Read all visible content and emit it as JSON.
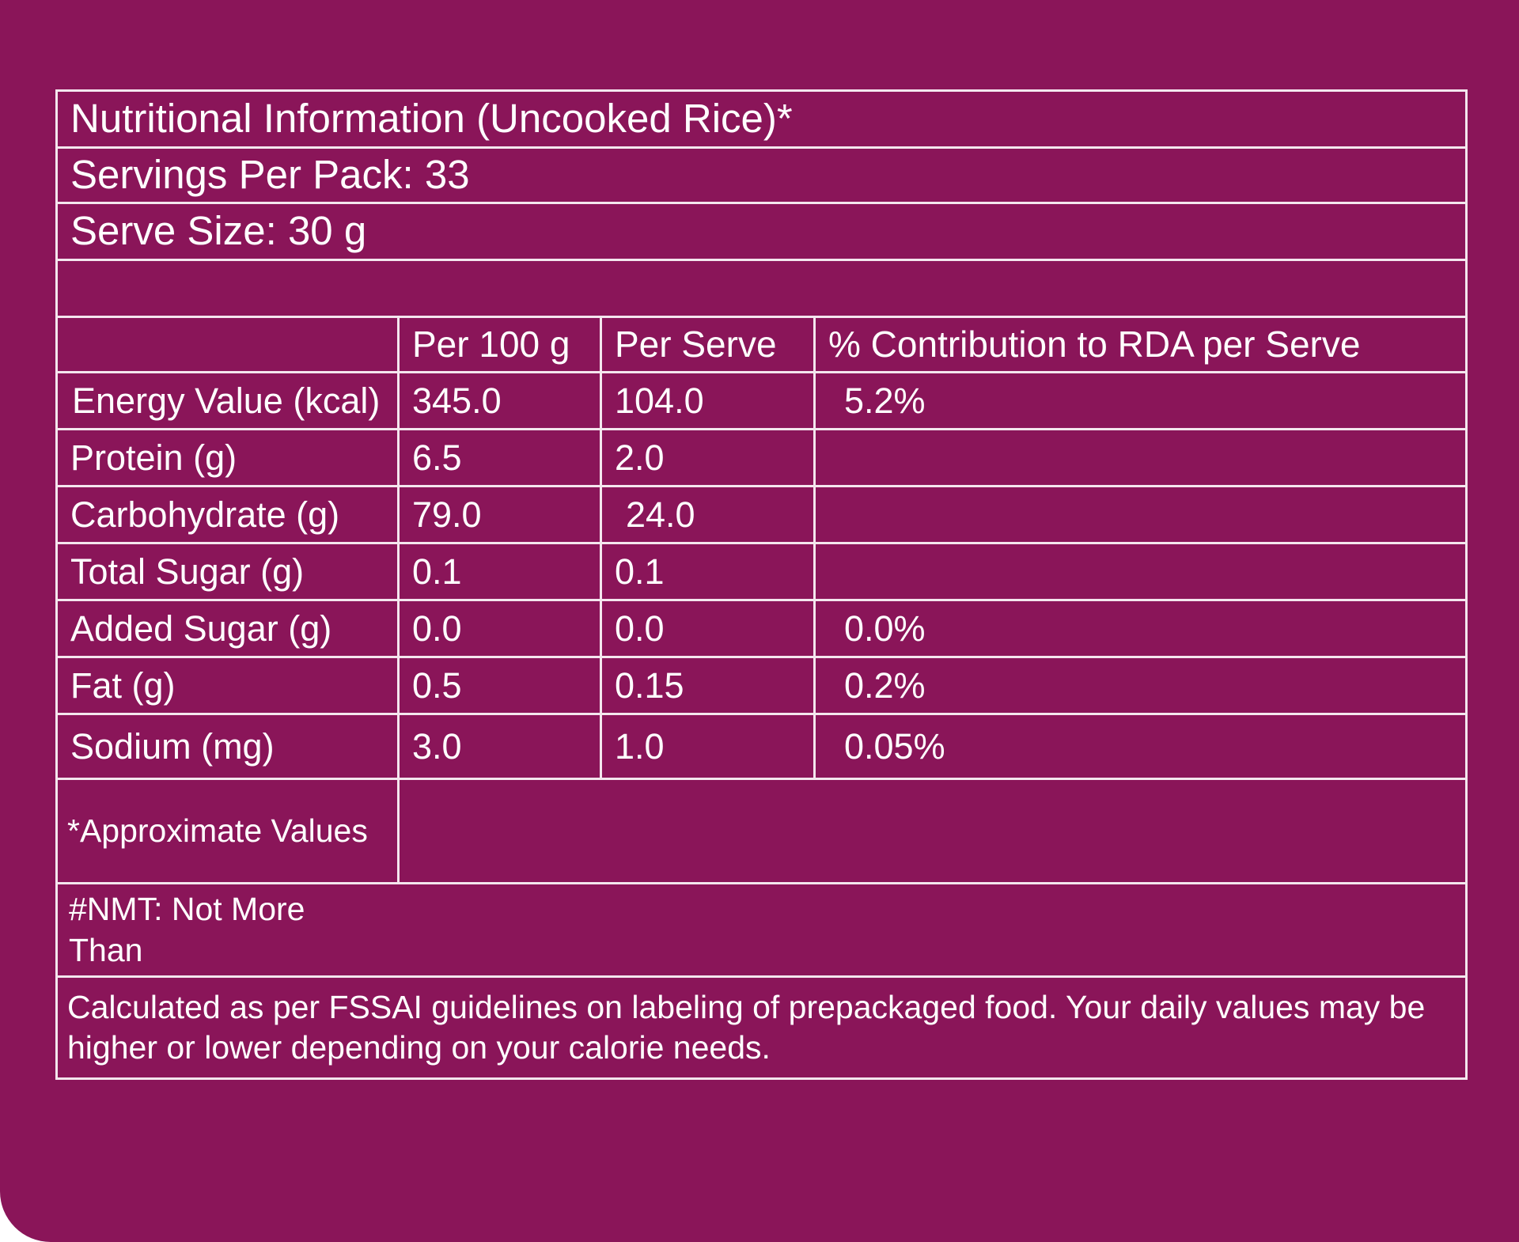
{
  "panel": {
    "background": "#8a1559",
    "line_color": "#f4e6ee"
  },
  "table": {
    "title": "Nutritional Information (Uncooked Rice)*",
    "servings_per_pack": "Servings Per Pack: 33",
    "serve_size": "Serve Size: 30 g",
    "columns": [
      "",
      "Per 100 g",
      "Per Serve",
      "% Contribution to RDA per Serve"
    ],
    "rows": [
      {
        "nutrient": "Energy Value (kcal)",
        "per_100g": "345.0",
        "per_serve": "104.0",
        "rda": "5.2%"
      },
      {
        "nutrient": "Protein (g)",
        "per_100g": "6.5",
        "per_serve": "2.0",
        "rda": ""
      },
      {
        "nutrient": "Carbohydrate (g)",
        "per_100g": "79.0",
        "per_serve": "24.0",
        "rda": ""
      },
      {
        "nutrient": "Total Sugar (g)",
        "per_100g": "0.1",
        "per_serve": "0.1",
        "rda": ""
      },
      {
        "nutrient": "Added Sugar (g)",
        "per_100g": "0.0",
        "per_serve": "0.0",
        "rda": "0.0%"
      },
      {
        "nutrient": "Fat (g)",
        "per_100g": "0.5",
        "per_serve": "0.15",
        "rda": "0.2%"
      },
      {
        "nutrient": "Sodium (mg)",
        "per_100g": "3.0",
        "per_serve": "1.0",
        "rda": "0.05%"
      }
    ],
    "approx_note": "*Approximate Values",
    "nmt_note": "#NMT: Not More Than",
    "fssai_note": "Calculated as per FSSAI guidelines on labeling of prepackaged food. Your daily values may be higher or lower depending on your calorie needs."
  }
}
